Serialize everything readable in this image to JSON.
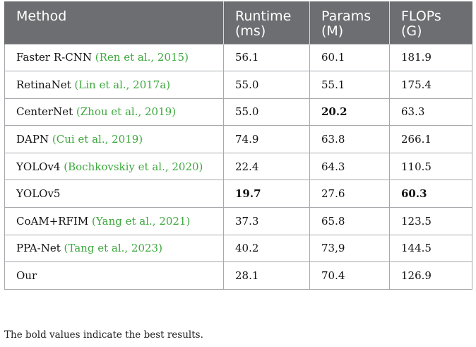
{
  "header": {
    "method": "Method",
    "runtime": [
      "Runtime",
      "(ms)"
    ],
    "params": [
      "Params",
      "(M)"
    ],
    "flops": [
      "FLOPs",
      "(G)"
    ]
  },
  "rows": [
    {
      "name": "Faster R-CNN",
      "cite": "(Ren et al., 2015)",
      "runtime": "56.1",
      "params": "60.1",
      "flops": "181.9",
      "bold": []
    },
    {
      "name": "RetinaNet",
      "cite": "(Lin et al., 2017a)",
      "runtime": "55.0",
      "params": "55.1",
      "flops": "175.4",
      "bold": []
    },
    {
      "name": "CenterNet",
      "cite": "(Zhou et al., 2019)",
      "runtime": "55.0",
      "params": "20.2",
      "flops": "63.3",
      "bold": [
        "params"
      ]
    },
    {
      "name": "DAPN",
      "cite": "(Cui et al., 2019)",
      "runtime": "74.9",
      "params": "63.8",
      "flops": "266.1",
      "bold": []
    },
    {
      "name": "YOLOv4",
      "cite": "(Bochkovskiy et al., 2020)",
      "runtime": "22.4",
      "params": "64.3",
      "flops": "110.5",
      "bold": []
    },
    {
      "name": "YOLOv5",
      "cite": "",
      "runtime": "19.7",
      "params": "27.6",
      "flops": "60.3",
      "bold": [
        "runtime",
        "flops"
      ]
    },
    {
      "name": "CoAM+RFIM",
      "cite": "(Yang et al., 2021)",
      "runtime": "37.3",
      "params": "65.8",
      "flops": "123.5",
      "bold": []
    },
    {
      "name": "PPA-Net",
      "cite": "(Tang et al., 2023)",
      "runtime": "40.2",
      "params": "73,9",
      "flops": "144.5",
      "bold": []
    },
    {
      "name": "Our",
      "cite": "",
      "runtime": "28.1",
      "params": "70.4",
      "flops": "126.9",
      "bold": []
    }
  ],
  "footnote": "The bold values indicate the best results.",
  "colors": {
    "header_bg": "#6d6e71",
    "citation": "#3ea83e"
  }
}
